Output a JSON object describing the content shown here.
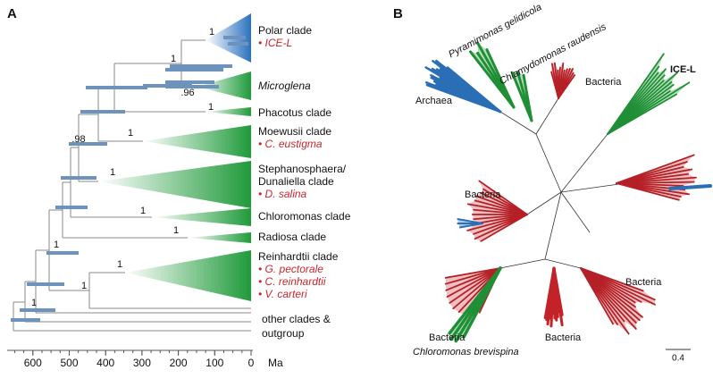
{
  "panel_a": {
    "label": "A",
    "clades": [
      {
        "name": "Polar clade",
        "species": [
          "• ICE-L"
        ]
      },
      {
        "name": "Microglena",
        "species": []
      },
      {
        "name": "Phacotus clade",
        "species": []
      },
      {
        "name": "Moewusii clade",
        "species": [
          "• C. eustigma"
        ]
      },
      {
        "name": "Stephanosphaera/",
        "name2": "Dunaliella clade",
        "species": [
          "• D. salina"
        ]
      },
      {
        "name": "Chloromonas clade",
        "species": []
      },
      {
        "name": "Radiosa clade",
        "species": []
      },
      {
        "name": "Reinhardtii clade",
        "species": [
          "• G. pectorale",
          "• C. reinhardtii",
          "• V. carteri"
        ]
      },
      {
        "name": "other clades &",
        "name2": "outgroup",
        "species": []
      }
    ],
    "support": [
      "1",
      "1",
      ".96",
      "1",
      "1",
      ".98",
      "1",
      "1",
      "1",
      "1",
      "1",
      "1",
      "1"
    ],
    "axis": {
      "ticks": [
        600,
        500,
        400,
        300,
        200,
        100,
        0
      ],
      "unit": "Ma"
    }
  },
  "panel_b": {
    "label": "B",
    "labels": [
      "Pyramimonas gelidicola",
      "Chlamydomonas raudensis",
      "ICE-L",
      "Archaea",
      "Bacteria",
      "Bacteria",
      "Bacteria",
      "Bacteria",
      "Bacteria",
      "Chloromonas brevispina"
    ],
    "scale": "0.4"
  }
}
